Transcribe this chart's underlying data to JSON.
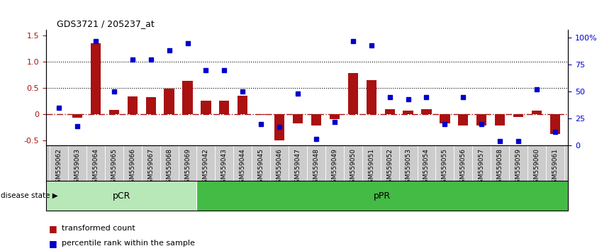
{
  "title": "GDS3721 / 205237_at",
  "categories": [
    "GSM559062",
    "GSM559063",
    "GSM559064",
    "GSM559065",
    "GSM559066",
    "GSM559067",
    "GSM559068",
    "GSM559069",
    "GSM559042",
    "GSM559043",
    "GSM559044",
    "GSM559045",
    "GSM559046",
    "GSM559047",
    "GSM559048",
    "GSM559049",
    "GSM559050",
    "GSM559051",
    "GSM559052",
    "GSM559053",
    "GSM559054",
    "GSM559055",
    "GSM559056",
    "GSM559057",
    "GSM559058",
    "GSM559059",
    "GSM559060",
    "GSM559061"
  ],
  "bar_values": [
    0.0,
    -0.07,
    1.35,
    0.08,
    0.34,
    0.32,
    0.48,
    0.63,
    0.25,
    0.25,
    0.35,
    -0.02,
    -0.5,
    -0.18,
    -0.22,
    -0.1,
    0.78,
    0.65,
    0.1,
    0.07,
    0.1,
    -0.18,
    -0.22,
    -0.22,
    -0.22,
    -0.05,
    0.07,
    -0.38
  ],
  "dot_values": [
    35,
    18,
    97,
    50,
    80,
    80,
    88,
    95,
    70,
    70,
    50,
    20,
    17,
    48,
    6,
    22,
    97,
    93,
    45,
    43,
    45,
    20,
    45,
    20,
    4,
    4,
    52,
    13
  ],
  "bar_color": "#aa1111",
  "dot_color": "#0000cc",
  "zero_line_color": "#aa1111",
  "ylim_left": [
    -0.6,
    1.6
  ],
  "ylim_right": [
    0,
    107
  ],
  "yticks_left": [
    -0.5,
    0.0,
    0.5,
    1.0,
    1.5
  ],
  "yticks_right": [
    0,
    25,
    50,
    75,
    100
  ],
  "hlines": [
    1.0,
    0.5
  ],
  "pCR_count": 8,
  "pCR_label": "pCR",
  "pPR_label": "pPR",
  "pCR_color": "#b8e8b8",
  "pPR_color": "#44bb44",
  "disease_state_label": "disease state",
  "legend_bar": "transformed count",
  "legend_dot": "percentile rank within the sample",
  "bar_width": 0.55,
  "marker_size": 5
}
